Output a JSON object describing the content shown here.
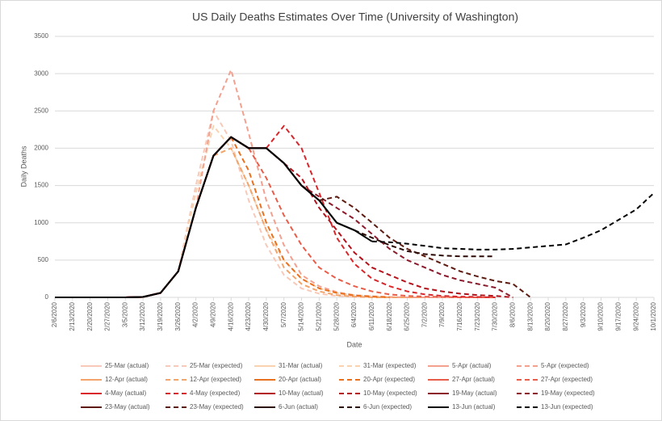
{
  "chart_data": {
    "type": "line",
    "title": "US Daily Deaths Estimates Over Time (University of Washington)",
    "x_label": "Date",
    "y_label": "Daily Deaths",
    "categories": [
      "2/6/2020",
      "2/13/2020",
      "2/20/2020",
      "2/27/2020",
      "3/5/2020",
      "3/12/2020",
      "3/19/2020",
      "3/26/2020",
      "4/2/2020",
      "4/9/2020",
      "4/16/2020",
      "4/23/2020",
      "4/30/2020",
      "5/7/2020",
      "5/14/2020",
      "5/21/2020",
      "5/28/2020",
      "6/4/2020",
      "6/11/2020",
      "6/18/2020",
      "6/25/2020",
      "7/2/2020",
      "7/9/2020",
      "7/16/2020",
      "7/23/2020",
      "7/30/2020",
      "8/6/2020",
      "8/13/2020",
      "8/20/2020",
      "8/27/2020",
      "9/3/2020",
      "9/10/2020",
      "9/17/2020",
      "9/24/2020",
      "10/1/2020"
    ],
    "ylim": [
      0,
      3500
    ],
    "yticks": [
      0,
      500,
      1000,
      1500,
      2000,
      2500,
      3000,
      3500
    ],
    "grid": true,
    "legend": "bottom",
    "series": [
      {
        "name": "25-Mar (actual)",
        "color": "#f8c9b8",
        "style": "solid",
        "values": [
          0,
          0,
          0,
          0,
          0,
          5,
          60,
          350,
          null,
          null,
          null,
          null,
          null,
          null,
          null,
          null,
          null,
          null,
          null,
          null,
          null,
          null,
          null,
          null,
          null,
          null,
          null,
          null,
          null,
          null,
          null,
          null,
          null,
          null,
          null
        ]
      },
      {
        "name": "25-Mar (expected)",
        "color": "#f8c9b8",
        "style": "dashed",
        "values": [
          null,
          null,
          null,
          null,
          null,
          null,
          null,
          350,
          1500,
          2500,
          2100,
          1300,
          700,
          300,
          120,
          50,
          20,
          10,
          5,
          0,
          0,
          0,
          0,
          0,
          0,
          0,
          null,
          null,
          null,
          null,
          null,
          null,
          null,
          null,
          null
        ]
      },
      {
        "name": "31-Mar (actual)",
        "color": "#f9d3b0",
        "style": "solid",
        "values": [
          0,
          0,
          0,
          0,
          0,
          5,
          60,
          350,
          null,
          null,
          null,
          null,
          null,
          null,
          null,
          null,
          null,
          null,
          null,
          null,
          null,
          null,
          null,
          null,
          null,
          null,
          null,
          null,
          null,
          null,
          null,
          null,
          null,
          null,
          null
        ]
      },
      {
        "name": "31-Mar (expected)",
        "color": "#f9d3b0",
        "style": "dashed",
        "values": [
          null,
          null,
          null,
          null,
          null,
          null,
          null,
          350,
          1400,
          2300,
          2000,
          1500,
          900,
          500,
          250,
          120,
          60,
          30,
          15,
          5,
          0,
          0,
          0,
          0,
          0,
          0,
          null,
          null,
          null,
          null,
          null,
          null,
          null,
          null,
          null
        ]
      },
      {
        "name": "5-Apr (actual)",
        "color": "#f4a08f",
        "style": "solid",
        "values": [
          0,
          0,
          0,
          0,
          0,
          5,
          60,
          350,
          1200,
          null,
          null,
          null,
          null,
          null,
          null,
          null,
          null,
          null,
          null,
          null,
          null,
          null,
          null,
          null,
          null,
          null,
          null,
          null,
          null,
          null,
          null,
          null,
          null,
          null,
          null
        ]
      },
      {
        "name": "5-Apr (expected)",
        "color": "#f4a08f",
        "style": "dashed",
        "values": [
          null,
          null,
          null,
          null,
          null,
          null,
          null,
          null,
          1200,
          2500,
          3050,
          2200,
          1300,
          700,
          300,
          150,
          70,
          30,
          15,
          5,
          0,
          0,
          0,
          0,
          0,
          0,
          null,
          null,
          null,
          null,
          null,
          null,
          null,
          null,
          null
        ]
      },
      {
        "name": "12-Apr (actual)",
        "color": "#f2a46b",
        "style": "solid",
        "values": [
          0,
          0,
          0,
          0,
          0,
          5,
          60,
          350,
          1200,
          1900,
          null,
          null,
          null,
          null,
          null,
          null,
          null,
          null,
          null,
          null,
          null,
          null,
          null,
          null,
          null,
          null,
          null,
          null,
          null,
          null,
          null,
          null,
          null,
          null,
          null
        ]
      },
      {
        "name": "12-Apr (expected)",
        "color": "#f2a46b",
        "style": "dashed",
        "values": [
          null,
          null,
          null,
          null,
          null,
          null,
          null,
          null,
          null,
          1900,
          2000,
          1500,
          900,
          400,
          180,
          80,
          30,
          10,
          0,
          0,
          0,
          0,
          null,
          null,
          null,
          null,
          null,
          null,
          null,
          null,
          null,
          null,
          null,
          null,
          null
        ]
      },
      {
        "name": "20-Apr (actual)",
        "color": "#e8711f",
        "style": "solid",
        "values": [
          0,
          0,
          0,
          0,
          0,
          5,
          60,
          350,
          1200,
          1900,
          2150,
          null,
          null,
          null,
          null,
          null,
          null,
          null,
          null,
          null,
          null,
          null,
          null,
          null,
          null,
          null,
          null,
          null,
          null,
          null,
          null,
          null,
          null,
          null,
          null
        ]
      },
      {
        "name": "20-Apr (expected)",
        "color": "#e8711f",
        "style": "dashed",
        "values": [
          null,
          null,
          null,
          null,
          null,
          null,
          null,
          null,
          null,
          null,
          2150,
          1700,
          1000,
          500,
          250,
          120,
          60,
          25,
          10,
          0,
          null,
          null,
          null,
          null,
          null,
          null,
          null,
          null,
          null,
          null,
          null,
          null,
          null,
          null,
          null
        ]
      },
      {
        "name": "27-Apr (actual)",
        "color": "#e85d4a",
        "style": "solid",
        "values": [
          0,
          0,
          0,
          0,
          0,
          5,
          60,
          350,
          1200,
          1900,
          2150,
          2000,
          null,
          null,
          null,
          null,
          null,
          null,
          null,
          null,
          null,
          null,
          null,
          null,
          null,
          null,
          null,
          null,
          null,
          null,
          null,
          null,
          null,
          null,
          null
        ]
      },
      {
        "name": "27-Apr (expected)",
        "color": "#e85d4a",
        "style": "dashed",
        "values": [
          null,
          null,
          null,
          null,
          null,
          null,
          null,
          null,
          null,
          null,
          null,
          2000,
          1600,
          1100,
          700,
          400,
          250,
          150,
          80,
          40,
          20,
          10,
          5,
          0,
          0,
          0,
          null,
          null,
          null,
          null,
          null,
          null,
          null,
          null,
          null
        ]
      },
      {
        "name": "4-May (actual)",
        "color": "#d9262a",
        "style": "solid",
        "values": [
          0,
          0,
          0,
          0,
          0,
          5,
          60,
          350,
          1200,
          1900,
          2150,
          2000,
          2000,
          null,
          null,
          null,
          null,
          null,
          null,
          null,
          null,
          null,
          null,
          null,
          null,
          null,
          null,
          null,
          null,
          null,
          null,
          null,
          null,
          null,
          null
        ]
      },
      {
        "name": "4-May (expected)",
        "color": "#d9262a",
        "style": "dashed",
        "values": [
          null,
          null,
          null,
          null,
          null,
          null,
          null,
          null,
          null,
          null,
          null,
          null,
          2000,
          2300,
          2000,
          1400,
          800,
          450,
          250,
          150,
          80,
          40,
          20,
          10,
          5,
          0,
          null,
          null,
          null,
          null,
          null,
          null,
          null,
          null,
          null
        ]
      },
      {
        "name": "10-May (actual)",
        "color": "#b3121b",
        "style": "solid",
        "values": [
          0,
          0,
          0,
          0,
          0,
          5,
          60,
          350,
          1200,
          1900,
          2150,
          2000,
          2000,
          1800,
          null,
          null,
          null,
          null,
          null,
          null,
          null,
          null,
          null,
          null,
          null,
          null,
          null,
          null,
          null,
          null,
          null,
          null,
          null,
          null,
          null
        ]
      },
      {
        "name": "10-May (expected)",
        "color": "#b3121b",
        "style": "dashed",
        "values": [
          null,
          null,
          null,
          null,
          null,
          null,
          null,
          null,
          null,
          null,
          null,
          null,
          null,
          1800,
          1600,
          1200,
          900,
          600,
          400,
          300,
          200,
          120,
          80,
          50,
          30,
          20,
          0,
          null,
          null,
          null,
          null,
          null,
          null,
          null,
          null
        ]
      },
      {
        "name": "19-May (actual)",
        "color": "#8b1a2b",
        "style": "solid",
        "values": [
          0,
          0,
          0,
          0,
          0,
          5,
          60,
          350,
          1200,
          1900,
          2150,
          2000,
          2000,
          1800,
          1500,
          null,
          null,
          null,
          null,
          null,
          null,
          null,
          null,
          null,
          null,
          null,
          null,
          null,
          null,
          null,
          null,
          null,
          null,
          null,
          null
        ]
      },
      {
        "name": "19-May (expected)",
        "color": "#8b1a2b",
        "style": "dashed",
        "values": [
          null,
          null,
          null,
          null,
          null,
          null,
          null,
          null,
          null,
          null,
          null,
          null,
          null,
          null,
          1500,
          1350,
          1200,
          1050,
          850,
          650,
          500,
          400,
          300,
          230,
          180,
          130,
          0,
          null,
          null,
          null,
          null,
          null,
          null,
          null,
          null
        ]
      },
      {
        "name": "23-May (actual)",
        "color": "#5c1a10",
        "style": "solid",
        "values": [
          0,
          0,
          0,
          0,
          0,
          5,
          60,
          350,
          1200,
          1900,
          2150,
          2000,
          2000,
          1800,
          1500,
          1300,
          null,
          null,
          null,
          null,
          null,
          null,
          null,
          null,
          null,
          null,
          null,
          null,
          null,
          null,
          null,
          null,
          null,
          null,
          null
        ]
      },
      {
        "name": "23-May (expected)",
        "color": "#5c1a10",
        "style": "dashed",
        "values": [
          null,
          null,
          null,
          null,
          null,
          null,
          null,
          null,
          null,
          null,
          null,
          null,
          null,
          null,
          null,
          1300,
          1350,
          1200,
          1000,
          800,
          650,
          550,
          450,
          350,
          280,
          220,
          180,
          0,
          null,
          null,
          null,
          null,
          null,
          null,
          null
        ]
      },
      {
        "name": "6-Jun (actual)",
        "color": "#2b0a06",
        "style": "solid",
        "values": [
          0,
          0,
          0,
          0,
          0,
          5,
          60,
          350,
          1200,
          1900,
          2150,
          2000,
          2000,
          1800,
          1500,
          1300,
          1000,
          900,
          null,
          null,
          null,
          null,
          null,
          null,
          null,
          null,
          null,
          null,
          null,
          null,
          null,
          null,
          null,
          null,
          null
        ]
      },
      {
        "name": "6-Jun (expected)",
        "color": "#2b0a06",
        "style": "dashed",
        "values": [
          null,
          null,
          null,
          null,
          null,
          null,
          null,
          null,
          null,
          null,
          null,
          null,
          null,
          null,
          null,
          null,
          null,
          900,
          800,
          700,
          620,
          580,
          560,
          550,
          550,
          550,
          null,
          null,
          null,
          null,
          null,
          null,
          null,
          null,
          null
        ]
      },
      {
        "name": "13-Jun (actual)",
        "color": "#000000",
        "style": "solid",
        "values": [
          0,
          0,
          0,
          0,
          0,
          5,
          60,
          350,
          1200,
          1900,
          2150,
          2000,
          2000,
          1800,
          1500,
          1300,
          1000,
          900,
          750,
          null,
          null,
          null,
          null,
          null,
          null,
          null,
          null,
          null,
          null,
          null,
          null,
          null,
          null,
          null,
          null
        ]
      },
      {
        "name": "13-Jun (expected)",
        "color": "#000000",
        "style": "dashed",
        "values": [
          null,
          null,
          null,
          null,
          null,
          null,
          null,
          null,
          null,
          null,
          null,
          null,
          null,
          null,
          null,
          null,
          null,
          null,
          750,
          740,
          720,
          690,
          660,
          650,
          640,
          640,
          650,
          670,
          690,
          710,
          800,
          900,
          1040,
          1180,
          1400
        ]
      }
    ]
  }
}
